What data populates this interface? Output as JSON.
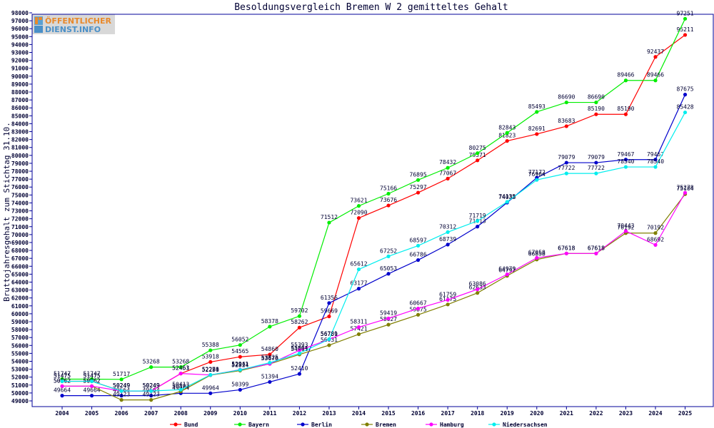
{
  "logo": {
    "line1": "ÖFFENTLICHER",
    "line2": "DIENST.INFO"
  },
  "chart_data": {
    "type": "line",
    "title": "Besoldungsvergleich Bremen W 2 gemitteltes Gehalt",
    "xlabel": "",
    "ylabel": "Bruttojahresgehalt zum Stichtag 31.10.",
    "ylim": [
      49000,
      98000
    ],
    "ytick_step": 1000,
    "grid": false,
    "legend_position": "bottom",
    "categories": [
      "2004",
      "2005",
      "2006",
      "2007",
      "2008",
      "2009",
      "2010",
      "2011",
      "2012",
      "2013",
      "2014",
      "2015",
      "2016",
      "2017",
      "2018",
      "2019",
      "2020",
      "2021",
      "2022",
      "2023",
      "2024",
      "2025"
    ],
    "series": [
      {
        "name": "Bund",
        "color": "#ff0000",
        "values": [
          51475,
          51475,
          50249,
          50249,
          52451,
          53918,
          54565,
          54860,
          58262,
          59669,
          72090,
          73676,
          75297,
          77067,
          79371,
          81823,
          82691,
          83683,
          85190,
          85190,
          92437,
          95211
        ]
      },
      {
        "name": "Bayern",
        "color": "#00ee00",
        "values": [
          51747,
          51747,
          51717,
          53268,
          53268,
          55388,
          56052,
          58378,
          59702,
          71512,
          73621,
          75166,
          76895,
          78432,
          80275,
          82843,
          85493,
          86690,
          86690,
          89466,
          89466,
          97251
        ]
      },
      {
        "name": "Berlin",
        "color": "#0000cc",
        "values": [
          49664,
          49664,
          49664,
          49664,
          49964,
          49964,
          50399,
          51394,
          52410,
          61356,
          63177,
          65053,
          66786,
          68739,
          71013,
          74038,
          77172,
          79079,
          79079,
          79467,
          79467,
          87675
        ]
      },
      {
        "name": "Bremen",
        "color": "#808000",
        "values": [
          50862,
          50862,
          49123,
          49123,
          50193,
          52250,
          52824,
          53676,
          54861,
          56031,
          57421,
          58627,
          59875,
          61175,
          62633,
          64797,
          66858,
          67618,
          67618,
          70192,
          70192,
          75104
        ]
      },
      {
        "name": "Hamburg",
        "color": "#ff00ff",
        "values": [
          50862,
          50862,
          50249,
          50249,
          52463,
          52271,
          52941,
          53676,
          55393,
          56759,
          58311,
          59419,
          60667,
          61759,
          63086,
          64979,
          67058,
          67618,
          67618,
          70443,
          68692,
          75278
        ]
      },
      {
        "name": "Niedersachsen",
        "color": "#00eeee",
        "values": [
          51475,
          51475,
          50249,
          50249,
          50413,
          52286,
          52911,
          53825,
          55004,
          56781,
          65612,
          67252,
          68597,
          70312,
          71719,
          74135,
          76904,
          77722,
          77722,
          78540,
          78540,
          85428
        ]
      }
    ]
  }
}
